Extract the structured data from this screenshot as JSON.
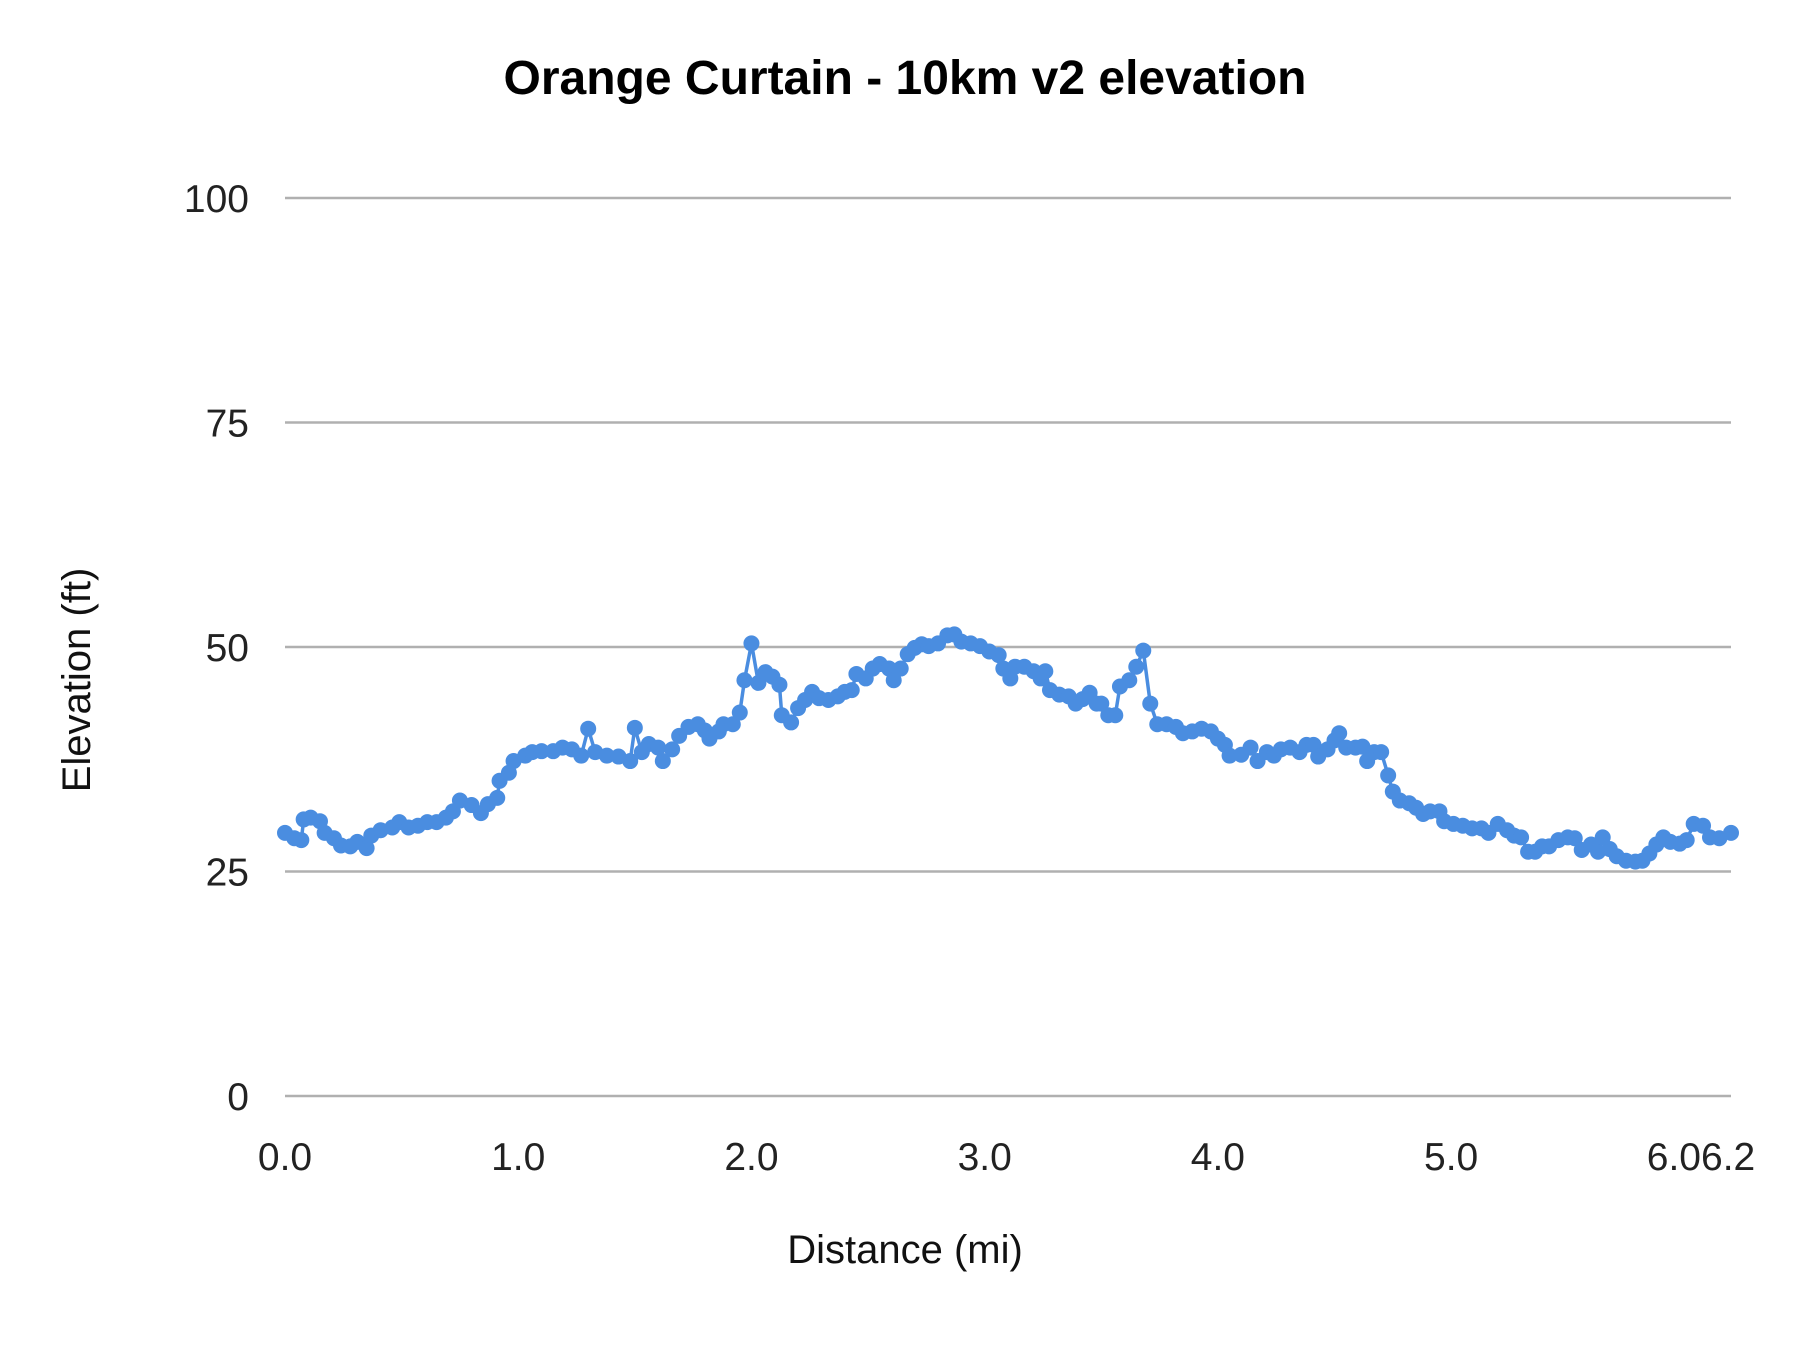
{
  "chart_data": {
    "type": "line",
    "title": "Orange Curtain - 10km v2 elevation",
    "xlabel": "Distance (mi)",
    "ylabel": "Elevation (ft)",
    "xlim": [
      0,
      6.2
    ],
    "ylim": [
      0,
      100
    ],
    "x_ticks": [
      "0.0",
      "1.0",
      "2.0",
      "3.0",
      "4.0",
      "5.0",
      "6.0",
      "6.2"
    ],
    "x_tick_values": [
      0,
      1,
      2,
      3,
      4,
      5,
      6,
      6.2
    ],
    "y_ticks": [
      "0",
      "25",
      "50",
      "75",
      "100"
    ],
    "y_tick_values": [
      0,
      25,
      50,
      75,
      100
    ],
    "grid": "horizontal",
    "legend": "none",
    "markers": true,
    "colors": {
      "series": "#4a8de0",
      "grid": "#b0b0b0"
    },
    "series": [
      {
        "x": [
          0.0,
          0.04,
          0.07,
          0.08,
          0.11,
          0.15,
          0.17,
          0.21,
          0.24,
          0.28,
          0.31,
          0.35,
          0.37,
          0.41,
          0.46,
          0.49,
          0.53,
          0.57,
          0.61,
          0.65,
          0.69,
          0.72,
          0.75,
          0.8,
          0.84,
          0.87,
          0.91,
          0.92,
          0.96,
          0.98,
          1.03,
          1.06,
          1.1,
          1.15,
          1.19,
          1.23,
          1.27,
          1.3,
          1.33,
          1.38,
          1.43,
          1.48,
          1.5,
          1.53,
          1.56,
          1.6,
          1.62,
          1.66,
          1.69,
          1.73,
          1.77,
          1.8,
          1.82,
          1.86,
          1.88,
          1.92,
          1.95,
          1.97,
          2.0,
          2.03,
          2.06,
          2.09,
          2.12,
          2.13,
          2.17,
          2.2,
          2.23,
          2.26,
          2.29,
          2.33,
          2.37,
          2.4,
          2.43,
          2.45,
          2.49,
          2.52,
          2.55,
          2.59,
          2.61,
          2.64,
          2.67,
          2.7,
          2.73,
          2.76,
          2.8,
          2.84,
          2.87,
          2.9,
          2.94,
          2.98,
          3.02,
          3.06,
          3.08,
          3.11,
          3.13,
          3.17,
          3.21,
          3.24,
          3.26,
          3.28,
          3.32,
          3.36,
          3.39,
          3.42,
          3.45,
          3.48,
          3.5,
          3.53,
          3.56,
          3.58,
          3.62,
          3.65,
          3.68,
          3.71,
          3.74,
          3.78,
          3.82,
          3.85,
          3.89,
          3.93,
          3.97,
          4.0,
          4.03,
          4.05,
          4.1,
          4.14,
          4.17,
          4.21,
          4.24,
          4.27,
          4.31,
          4.35,
          4.38,
          4.41,
          4.43,
          4.47,
          4.5,
          4.52,
          4.55,
          4.59,
          4.62,
          4.64,
          4.67,
          4.7,
          4.73,
          4.75,
          4.78,
          4.82,
          4.85,
          4.88,
          4.91,
          4.95,
          4.97,
          5.01,
          5.05,
          5.09,
          5.13,
          5.16,
          5.2,
          5.24,
          5.27,
          5.3,
          5.33,
          5.36,
          5.39,
          5.42,
          5.46,
          5.5,
          5.53,
          5.56,
          5.6,
          5.63,
          5.65,
          5.68,
          5.71,
          5.75,
          5.79,
          5.82,
          5.85,
          5.88,
          5.91,
          5.94,
          5.98,
          6.01,
          6.04,
          6.08,
          6.11,
          6.15,
          6.2
        ],
        "y": [
          29.3,
          28.7,
          28.5,
          30.8,
          31.0,
          30.6,
          29.3,
          28.7,
          27.9,
          27.8,
          28.3,
          27.6,
          29.0,
          29.6,
          29.9,
          30.5,
          29.9,
          30.1,
          30.5,
          30.5,
          31.0,
          31.7,
          32.9,
          32.4,
          31.5,
          32.5,
          33.2,
          35.1,
          36.0,
          37.3,
          37.9,
          38.3,
          38.4,
          38.4,
          38.8,
          38.6,
          37.9,
          40.9,
          38.3,
          37.9,
          37.8,
          37.3,
          41.0,
          38.3,
          39.2,
          38.8,
          37.3,
          38.6,
          40.1,
          41.1,
          41.4,
          40.7,
          39.8,
          40.6,
          41.4,
          41.4,
          42.7,
          46.3,
          50.4,
          46.0,
          47.2,
          46.7,
          45.8,
          42.4,
          41.6,
          43.2,
          44.1,
          45.0,
          44.3,
          44.1,
          44.5,
          45.0,
          45.2,
          47.0,
          46.5,
          47.6,
          48.1,
          47.6,
          46.3,
          47.6,
          49.2,
          49.9,
          50.3,
          50.1,
          50.4,
          51.3,
          51.4,
          50.6,
          50.4,
          50.1,
          49.5,
          49.1,
          47.6,
          46.5,
          47.8,
          47.8,
          47.3,
          46.5,
          47.3,
          45.2,
          44.7,
          44.5,
          43.7,
          44.2,
          44.9,
          43.7,
          43.7,
          42.4,
          42.4,
          45.6,
          46.3,
          47.8,
          49.6,
          43.7,
          41.4,
          41.4,
          41.1,
          40.4,
          40.6,
          40.9,
          40.6,
          39.8,
          39.1,
          37.9,
          38.0,
          38.8,
          37.3,
          38.3,
          37.9,
          38.6,
          38.8,
          38.3,
          39.1,
          39.1,
          37.8,
          38.6,
          39.6,
          40.4,
          38.8,
          38.8,
          38.9,
          37.3,
          38.3,
          38.3,
          35.7,
          33.9,
          32.9,
          32.6,
          32.1,
          31.4,
          31.7,
          31.7,
          30.6,
          30.3,
          30.1,
          29.8,
          29.8,
          29.3,
          30.3,
          29.6,
          29.0,
          28.8,
          27.2,
          27.2,
          27.8,
          27.8,
          28.5,
          28.8,
          28.7,
          27.4,
          28.0,
          27.2,
          28.8,
          27.5,
          26.7,
          26.2,
          26.1,
          26.2,
          27.0,
          28.0,
          28.8,
          28.3,
          28.1,
          28.5,
          30.3,
          30.1,
          28.8,
          28.7,
          29.3
        ]
      }
    ]
  }
}
